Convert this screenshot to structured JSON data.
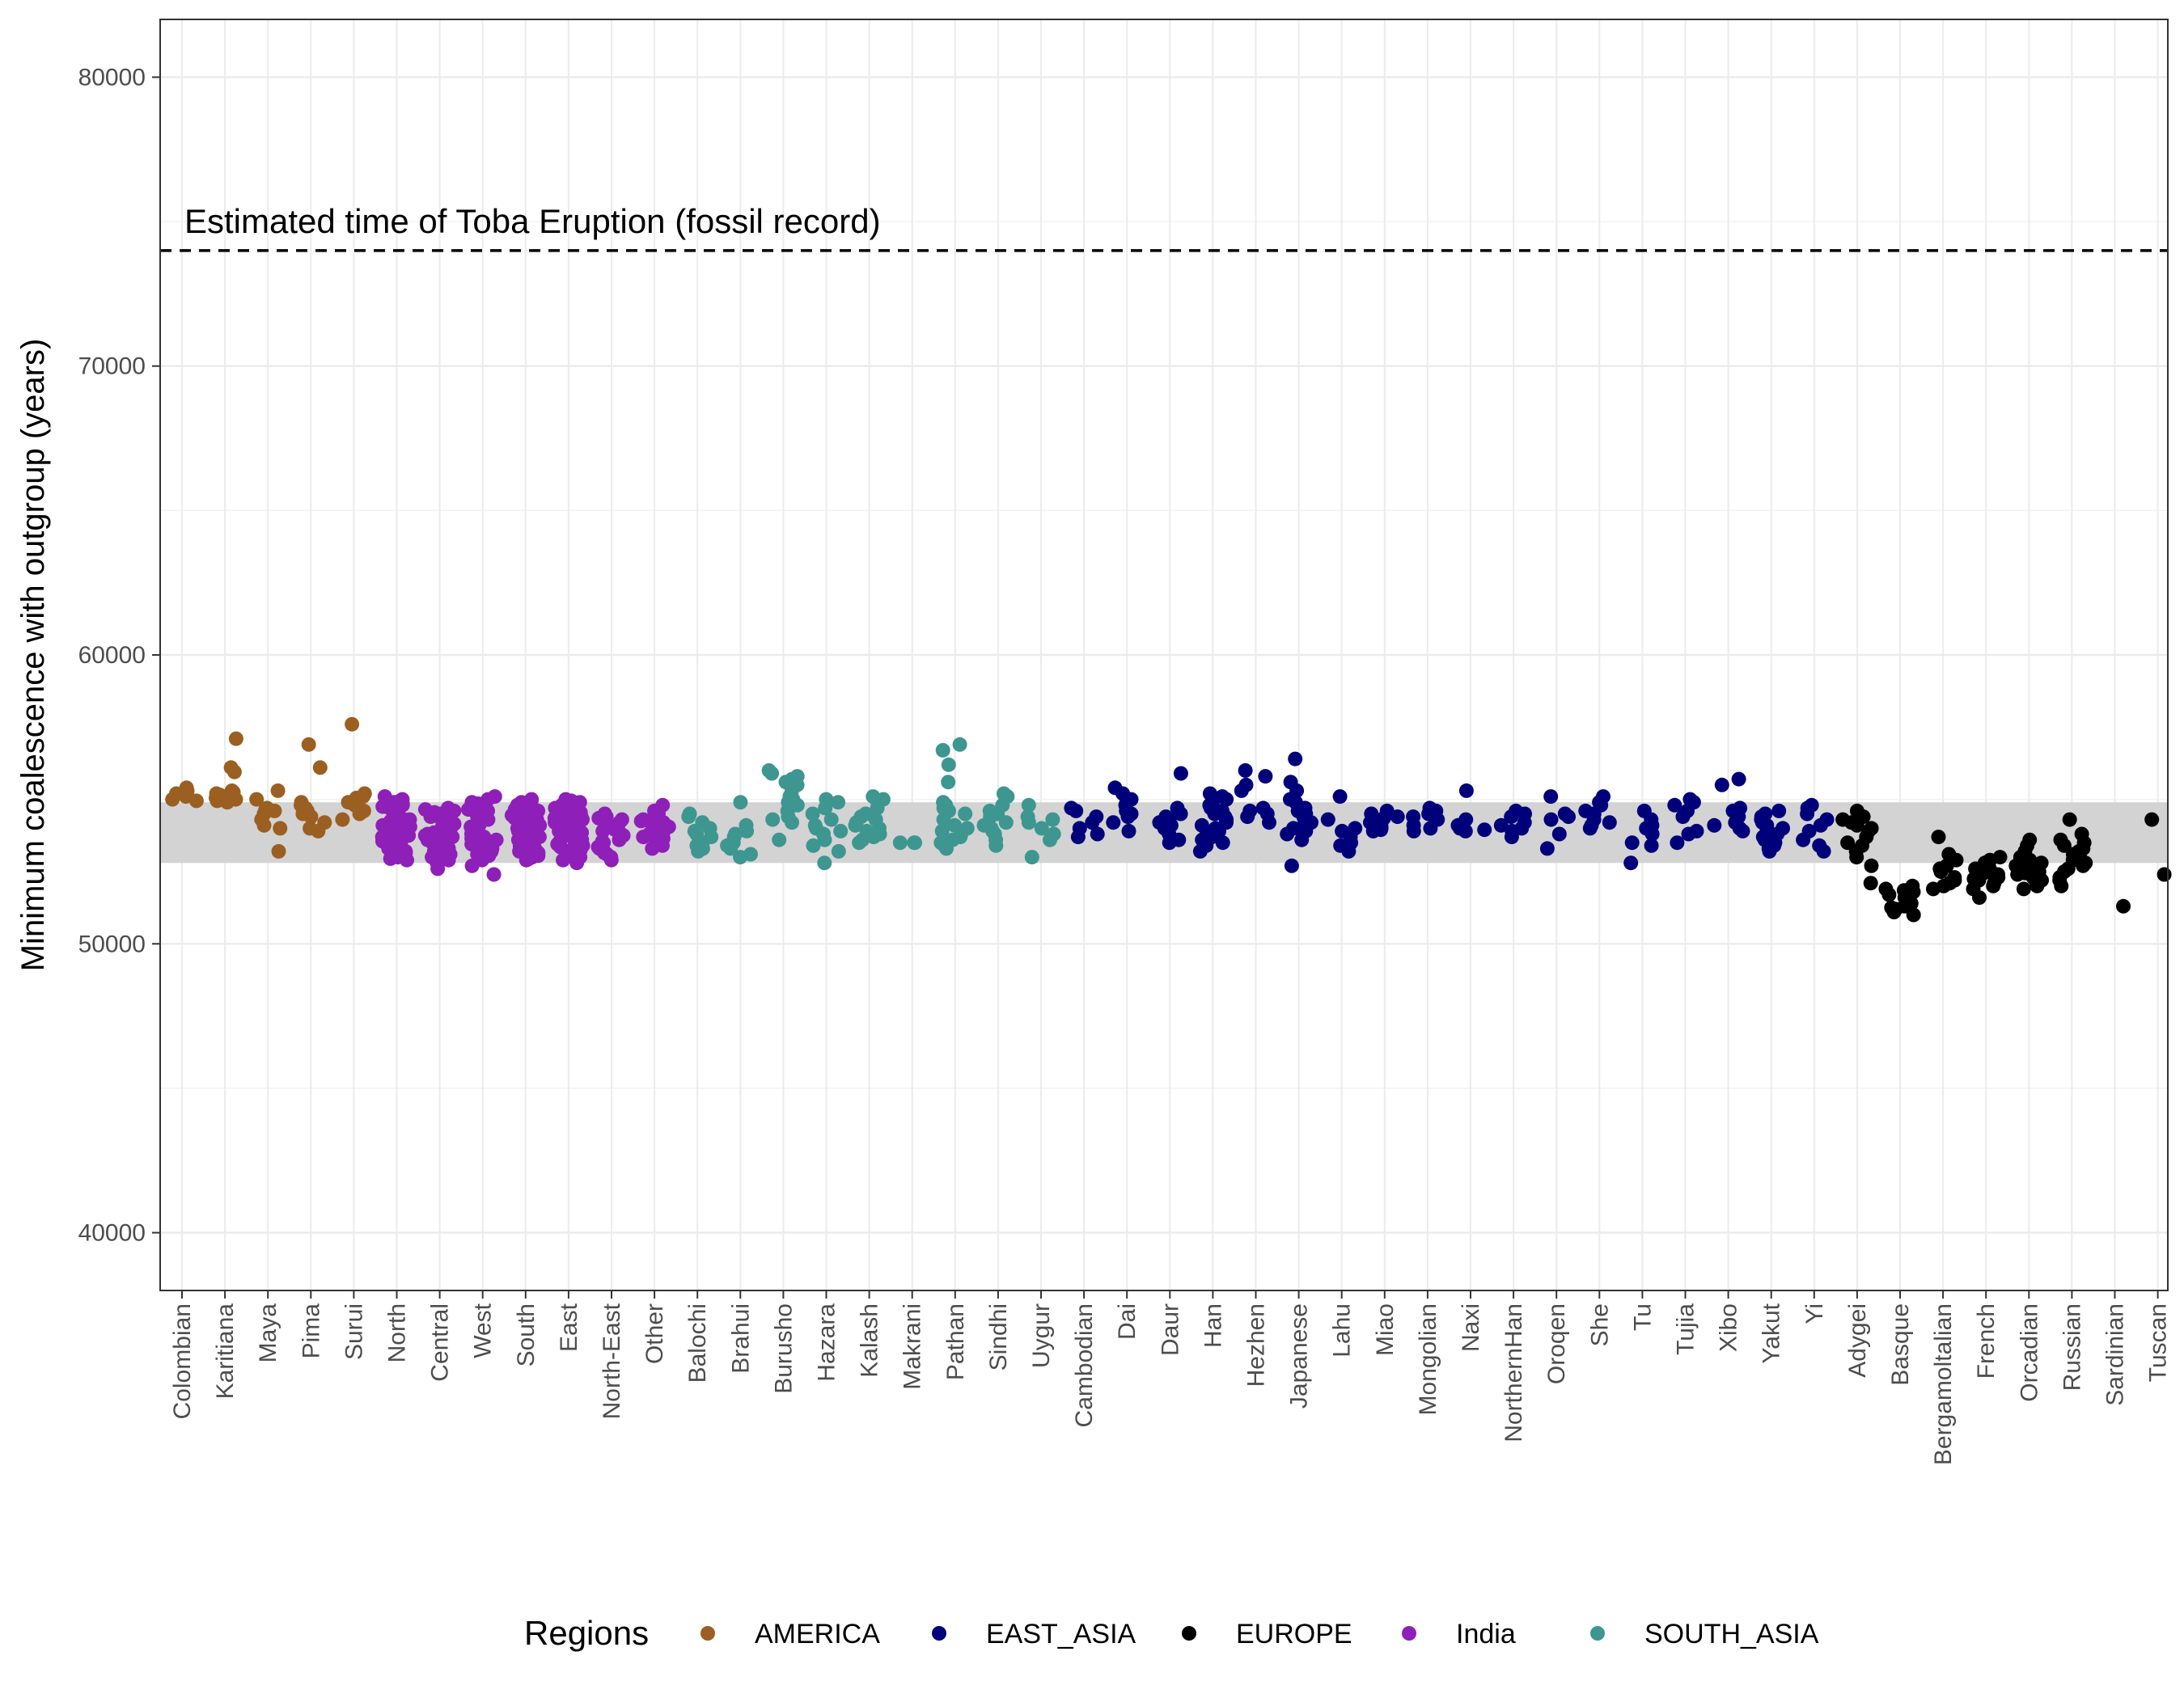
{
  "chart_data": {
    "type": "scatter",
    "ylabel": "Minimum coalescence with outgroup (years)",
    "ylim": [
      38000,
      82000
    ],
    "yticks": [
      40000,
      50000,
      60000,
      70000,
      80000
    ],
    "ytick_labels": [
      "40000",
      "50000",
      "60000",
      "70000",
      "80000"
    ],
    "grid": true,
    "reference_line": {
      "y": 74000,
      "style": "dashed",
      "label": "Estimated time of Toba Eruption (fossil record)"
    },
    "band": {
      "ymin": 52800,
      "ymax": 54900,
      "color": "#d3d3d3"
    },
    "legend": {
      "title": "Regions",
      "position": "bottom",
      "entries": [
        {
          "label": "AMERICA",
          "color": "#9b5f21"
        },
        {
          "label": "EAST_ASIA",
          "color": "#00007a"
        },
        {
          "label": "EUROPE",
          "color": "#000000"
        },
        {
          "label": "India",
          "color": "#8e1fb8"
        },
        {
          "label": "SOUTH_ASIA",
          "color": "#3e9690"
        }
      ]
    },
    "categories": [
      {
        "name": "Colombian",
        "region": "AMERICA",
        "values": [
          55400,
          55200,
          55100,
          54950,
          55300,
          55250,
          55000
        ]
      },
      {
        "name": "Karitiana",
        "region": "AMERICA",
        "values": [
          57100,
          56100,
          55950,
          55300,
          55150,
          55100,
          55050,
          54900,
          54950,
          55200,
          55250,
          55000
        ]
      },
      {
        "name": "Maya",
        "region": "AMERICA",
        "values": [
          55300,
          55000,
          54700,
          54600,
          54500,
          54300,
          54100,
          54000,
          53200,
          54650
        ]
      },
      {
        "name": "Pima",
        "region": "AMERICA",
        "values": [
          56900,
          56100,
          54900,
          54800,
          54700,
          54600,
          54400,
          54200,
          54000,
          53900,
          54500
        ]
      },
      {
        "name": "Surui",
        "region": "AMERICA",
        "values": [
          57600,
          55200,
          55100,
          54900,
          54800,
          54600,
          54500,
          54300,
          55050
        ]
      },
      {
        "name": "North",
        "region": "India",
        "values": [
          55100,
          55000,
          54900,
          54800,
          54700,
          54600,
          54500,
          54400,
          54300,
          54200,
          54100,
          54000,
          53900,
          53800,
          53700,
          53600,
          53500,
          53400,
          53300,
          53200,
          53100,
          53000,
          52900,
          54950,
          54850,
          54750,
          54650,
          54550,
          54450,
          54350,
          54250,
          54150,
          54050,
          53950,
          53850,
          53750,
          53650,
          53550,
          53450,
          53350,
          53250,
          53150,
          53050,
          52950
        ]
      },
      {
        "name": "Central",
        "region": "India",
        "values": [
          54700,
          54600,
          54500,
          54400,
          54300,
          54200,
          54100,
          54000,
          53900,
          53800,
          53700,
          53600,
          53500,
          53400,
          53300,
          53200,
          53100,
          53000,
          52900,
          52800,
          52600,
          54650,
          54550,
          54450,
          54350,
          54250,
          54150,
          54050,
          53950,
          53850,
          53750,
          53650,
          53550,
          53450,
          53350,
          53250,
          53150,
          53050
        ]
      },
      {
        "name": "West",
        "region": "India",
        "values": [
          55100,
          55000,
          54900,
          54800,
          54700,
          54600,
          54500,
          54400,
          54300,
          54200,
          54100,
          54000,
          53900,
          53800,
          53700,
          53600,
          53500,
          53400,
          53300,
          53200,
          53100,
          53000,
          52900,
          52700,
          52400,
          54850,
          54650,
          54450,
          54250,
          54050,
          53850,
          53650,
          53450,
          53250,
          53050
        ]
      },
      {
        "name": "South",
        "region": "India",
        "values": [
          55000,
          54900,
          54800,
          54700,
          54600,
          54500,
          54400,
          54300,
          54200,
          54100,
          54000,
          53900,
          53800,
          53700,
          53600,
          53500,
          53400,
          53300,
          53200,
          53100,
          53000,
          52900,
          54950,
          54850,
          54750,
          54650,
          54550,
          54450,
          54350,
          54250,
          54150,
          54050,
          53950,
          53850,
          53750,
          53650,
          53550,
          53450,
          53350,
          53250,
          53150,
          53050,
          52950
        ]
      },
      {
        "name": "East",
        "region": "India",
        "values": [
          55000,
          54900,
          54800,
          54700,
          54600,
          54500,
          54400,
          54300,
          54200,
          54100,
          54000,
          53900,
          53800,
          53700,
          53600,
          53500,
          53400,
          53300,
          53200,
          53100,
          53000,
          52900,
          52800,
          54950,
          54850,
          54750,
          54650,
          54550,
          54450,
          54350,
          54250,
          54150,
          54050,
          53950,
          53850,
          53750,
          53650,
          53550,
          53450,
          53350,
          53250,
          53150
        ]
      },
      {
        "name": "North-East",
        "region": "India",
        "values": [
          54500,
          54400,
          54300,
          54200,
          54100,
          54000,
          53900,
          53800,
          53700,
          53600,
          53500,
          53400,
          53300,
          53200,
          53100,
          53000,
          52900,
          54350,
          54150,
          53950,
          53750,
          53550,
          53350,
          53150
        ]
      },
      {
        "name": "Other",
        "region": "India",
        "values": [
          54800,
          54600,
          54500,
          54400,
          54300,
          54200,
          54100,
          54000,
          53900,
          53800,
          53700,
          53600,
          53500,
          53400,
          53300,
          54250,
          54050,
          53850,
          53650
        ]
      },
      {
        "name": "Balochi",
        "region": "SOUTH_ASIA",
        "values": [
          54500,
          54400,
          54200,
          54000,
          53900,
          53800,
          53700,
          53500,
          53400,
          53300,
          53200
        ]
      },
      {
        "name": "Brahui",
        "region": "SOUTH_ASIA",
        "values": [
          54900,
          54100,
          53900,
          53700,
          53500,
          53400,
          53300,
          53100,
          53000,
          53800
        ]
      },
      {
        "name": "Burusho",
        "region": "SOUTH_ASIA",
        "values": [
          56000,
          55900,
          55800,
          55700,
          55600,
          55500,
          55300,
          55100,
          55000,
          54800,
          54600,
          54400,
          54300,
          54200,
          53600,
          54900
        ]
      },
      {
        "name": "Hazara",
        "region": "SOUTH_ASIA",
        "values": [
          55000,
          54900,
          54700,
          54500,
          54300,
          54100,
          54000,
          53900,
          53800,
          53600,
          53400,
          53200,
          52800
        ]
      },
      {
        "name": "Kalash",
        "region": "SOUTH_ASIA",
        "values": [
          55100,
          55000,
          54900,
          54700,
          54500,
          54400,
          54300,
          54200,
          54100,
          54000,
          53900,
          53800,
          53700,
          53600,
          53500
        ]
      },
      {
        "name": "Makrani",
        "region": "SOUTH_ASIA",
        "values": [
          53500,
          53500,
          53500
        ]
      },
      {
        "name": "Pathan",
        "region": "SOUTH_ASIA",
        "values": [
          56900,
          56700,
          56200,
          55600,
          54900,
          54800,
          54700,
          54600,
          54500,
          54300,
          54100,
          54000,
          53900,
          53800,
          53700,
          53600,
          53500,
          53400,
          53300
        ]
      },
      {
        "name": "Sindhi",
        "region": "SOUTH_ASIA",
        "values": [
          55200,
          55100,
          54800,
          54600,
          54500,
          54400,
          54200,
          54100,
          54000,
          53900,
          53800,
          53600,
          53400
        ]
      },
      {
        "name": "Uygur",
        "region": "SOUTH_ASIA",
        "values": [
          54800,
          54400,
          54300,
          54200,
          54000,
          53800,
          53600,
          53000
        ]
      },
      {
        "name": "Cambodian",
        "region": "EAST_ASIA",
        "values": [
          54700,
          54600,
          54400,
          54200,
          54000,
          53800,
          53700
        ]
      },
      {
        "name": "Dai",
        "region": "EAST_ASIA",
        "values": [
          55400,
          55200,
          55000,
          54900,
          54800,
          54600,
          54500,
          54400,
          54200,
          53900
        ]
      },
      {
        "name": "Daur",
        "region": "EAST_ASIA",
        "values": [
          55900,
          54700,
          54500,
          54400,
          54300,
          54200,
          54100,
          54000,
          53800,
          53600,
          53500
        ]
      },
      {
        "name": "Han",
        "region": "EAST_ASIA",
        "values": [
          55200,
          55100,
          55000,
          54900,
          54800,
          54700,
          54600,
          54500,
          54400,
          54300,
          54200,
          54100,
          54000,
          53900,
          53800,
          53700,
          53600,
          53500,
          53400,
          53200
        ]
      },
      {
        "name": "Hezhen",
        "region": "EAST_ASIA",
        "values": [
          56000,
          55800,
          55500,
          55300,
          54700,
          54600,
          54500,
          54400,
          54200
        ]
      },
      {
        "name": "Japanese",
        "region": "EAST_ASIA",
        "values": [
          56400,
          55600,
          55300,
          55000,
          54900,
          54700,
          54600,
          54500,
          54400,
          54300,
          54200,
          54100,
          54000,
          53900,
          53800,
          53600,
          52700
        ]
      },
      {
        "name": "Lahu",
        "region": "EAST_ASIA",
        "values": [
          55100,
          54300,
          54000,
          53900,
          53700,
          53500,
          53400,
          53200
        ]
      },
      {
        "name": "Miao",
        "region": "EAST_ASIA",
        "values": [
          54600,
          54500,
          54400,
          54300,
          54200,
          54100,
          54000,
          53900,
          53950,
          54350
        ]
      },
      {
        "name": "Mongolian",
        "region": "EAST_ASIA",
        "values": [
          54700,
          54600,
          54500,
          54400,
          54300,
          54100,
          54000,
          53900
        ]
      },
      {
        "name": "Naxi",
        "region": "EAST_ASIA",
        "values": [
          55300,
          54300,
          54100,
          54000,
          53900,
          53950
        ]
      },
      {
        "name": "NorthernHan",
        "region": "EAST_ASIA",
        "values": [
          54600,
          54500,
          54400,
          54200,
          54100,
          54000,
          53900,
          53700
        ]
      },
      {
        "name": "Oroqen",
        "region": "EAST_ASIA",
        "values": [
          55100,
          54500,
          54400,
          54300,
          53800,
          53300
        ]
      },
      {
        "name": "She",
        "region": "EAST_ASIA",
        "values": [
          55100,
          54900,
          54800,
          54600,
          54500,
          54300,
          54200,
          54100,
          54000
        ]
      },
      {
        "name": "Tu",
        "region": "EAST_ASIA",
        "values": [
          54600,
          54300,
          54100,
          54000,
          53800,
          53500,
          53400,
          52800
        ]
      },
      {
        "name": "Tujia",
        "region": "EAST_ASIA",
        "values": [
          55000,
          54900,
          54800,
          54600,
          54400,
          53900,
          53800,
          53500
        ]
      },
      {
        "name": "Xibo",
        "region": "EAST_ASIA",
        "values": [
          55700,
          55500,
          54700,
          54600,
          54400,
          54200,
          54100,
          54000,
          53900
        ]
      },
      {
        "name": "Yakut",
        "region": "EAST_ASIA",
        "values": [
          54600,
          54500,
          54400,
          54300,
          54200,
          54100,
          54000,
          53900,
          53800,
          53700,
          53600,
          53500,
          53400,
          53300,
          53200
        ]
      },
      {
        "name": "Yi",
        "region": "EAST_ASIA",
        "values": [
          54800,
          54700,
          54500,
          54300,
          54100,
          53900,
          53600,
          53400,
          53200
        ]
      },
      {
        "name": "Adygei",
        "region": "EUROPE",
        "values": [
          54600,
          54400,
          54300,
          54200,
          54100,
          54000,
          53900,
          53700,
          53500,
          53400,
          53200,
          53000,
          52700,
          52100
        ]
      },
      {
        "name": "Basque",
        "region": "EUROPE",
        "values": [
          52000,
          51900,
          51800,
          51700,
          51600,
          51500,
          51400,
          51300,
          51200,
          51100,
          51000,
          51850,
          51650,
          51450,
          51250
        ]
      },
      {
        "name": "Bergamoltalian",
        "region": "EUROPE",
        "values": [
          53700,
          53100,
          52900,
          52700,
          52600,
          52500,
          52300,
          52200,
          52100,
          52000,
          51900
        ]
      },
      {
        "name": "French",
        "region": "EUROPE",
        "values": [
          53000,
          52900,
          52800,
          52700,
          52600,
          52500,
          52400,
          52300,
          52200,
          52100,
          52000,
          51900,
          51600,
          52850,
          52650,
          52450,
          52250
        ]
      },
      {
        "name": "Orcadian",
        "region": "EUROPE",
        "values": [
          53600,
          53400,
          53200,
          53000,
          52900,
          52800,
          52700,
          52600,
          52500,
          52400,
          52300,
          52200,
          52100,
          52000,
          51900,
          52850,
          52650,
          52450
        ]
      },
      {
        "name": "Russian",
        "region": "EUROPE",
        "values": [
          54300,
          53800,
          53600,
          53500,
          53400,
          53300,
          53200,
          53100,
          53000,
          52900,
          52800,
          52700,
          52600,
          52500,
          52300,
          52200,
          52000
        ]
      },
      {
        "name": "Sardinian",
        "region": "EUROPE",
        "values": [
          51300
        ]
      },
      {
        "name": "Tuscan",
        "region": "EUROPE",
        "values": [
          54300,
          52400
        ]
      }
    ]
  }
}
